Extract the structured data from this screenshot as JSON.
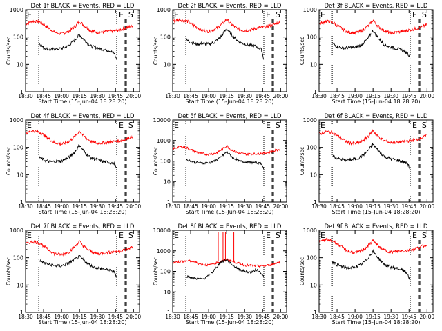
{
  "figure": {
    "y_label": "Counts/sec",
    "x_label": "Start Time (15-Jun-04 18:28:20)",
    "colors": {
      "events": "#000000",
      "lld": "#ff0000",
      "axes": "#000000"
    }
  },
  "chart_data": [
    {
      "type": "line",
      "title": "Det 1f BLACK = Events, RED = LLD",
      "x_ticks": [
        "18:30",
        "18:45",
        "19:00",
        "19:15",
        "19:30",
        "19:45",
        "20:00"
      ],
      "y_ticks": [
        "1",
        "10",
        "100",
        "1000"
      ],
      "y_scale": "log",
      "ylim": [
        1,
        1000
      ],
      "markers": [
        "E",
        "E",
        "S"
      ],
      "event_markers": {
        "dotted": [
          "18:41",
          "19:46"
        ],
        "dashed": [
          "19:53",
          "19:54"
        ]
      },
      "series": [
        {
          "color": "#ff0000",
          "x": [
            "18:30",
            "18:36",
            "18:42",
            "18:48",
            "18:54",
            "19:00",
            "19:06",
            "19:12",
            "19:15",
            "19:18",
            "19:24",
            "19:30",
            "19:36",
            "19:42",
            "19:48",
            "19:54",
            "20:00"
          ],
          "y": [
            300,
            380,
            350,
            230,
            150,
            130,
            160,
            260,
            380,
            280,
            170,
            150,
            155,
            165,
            180,
            220,
            270
          ]
        },
        {
          "color": "#000000",
          "x": [
            "18:41",
            "18:45",
            "18:50",
            "18:55",
            "19:00",
            "19:05",
            "19:10",
            "19:15",
            "19:20",
            "19:25",
            "19:30",
            "19:35",
            "19:40",
            "19:44",
            "19:46"
          ],
          "y": [
            60,
            40,
            35,
            37,
            38,
            45,
            70,
            120,
            70,
            45,
            40,
            35,
            32,
            25,
            15
          ]
        }
      ]
    },
    {
      "type": "line",
      "title": "Det 2f BLACK = Events, RED = LLD",
      "x_ticks": [
        "18:30",
        "18:45",
        "19:00",
        "19:15",
        "19:30",
        "19:45",
        "20:00"
      ],
      "y_ticks": [
        "1",
        "10",
        "100",
        "1000"
      ],
      "y_scale": "log",
      "ylim": [
        1,
        1000
      ],
      "markers": [
        "E",
        "E",
        "S"
      ],
      "event_markers": {
        "dotted": [
          "18:41",
          "19:46"
        ],
        "dashed": [
          "19:53",
          "19:54"
        ]
      },
      "series": [
        {
          "color": "#ff0000",
          "x": [
            "18:30",
            "18:36",
            "18:42",
            "18:48",
            "18:54",
            "19:00",
            "19:06",
            "19:12",
            "19:15",
            "19:18",
            "19:24",
            "19:30",
            "19:36",
            "19:42",
            "19:48",
            "19:54",
            "20:00"
          ],
          "y": [
            380,
            430,
            380,
            260,
            180,
            160,
            200,
            320,
            450,
            320,
            200,
            170,
            190,
            220,
            240,
            280,
            380
          ]
        },
        {
          "color": "#000000",
          "x": [
            "18:41",
            "18:45",
            "18:50",
            "18:55",
            "19:00",
            "19:05",
            "19:10",
            "19:15",
            "19:20",
            "19:25",
            "19:30",
            "19:35",
            "19:40",
            "19:44",
            "19:46"
          ],
          "y": [
            80,
            65,
            55,
            58,
            55,
            65,
            100,
            200,
            110,
            70,
            55,
            50,
            45,
            35,
            15
          ]
        }
      ]
    },
    {
      "type": "line",
      "title": "Det 3f BLACK = Events, RED = LLD",
      "x_ticks": [
        "18:30",
        "18:45",
        "19:00",
        "19:15",
        "19:30",
        "19:45",
        "20:00"
      ],
      "y_ticks": [
        "1",
        "10",
        "100",
        "1000"
      ],
      "y_scale": "log",
      "ylim": [
        1,
        1000
      ],
      "markers": [
        "E",
        "E",
        "S"
      ],
      "event_markers": {
        "dotted": [
          "18:41",
          "19:46"
        ],
        "dashed": [
          "19:53",
          "19:54"
        ]
      },
      "series": [
        {
          "color": "#ff0000",
          "x": [
            "18:30",
            "18:36",
            "18:42",
            "18:48",
            "18:54",
            "19:00",
            "19:06",
            "19:12",
            "19:15",
            "19:18",
            "19:24",
            "19:30",
            "19:36",
            "19:42",
            "19:48",
            "19:54",
            "20:00"
          ],
          "y": [
            300,
            380,
            330,
            220,
            150,
            140,
            170,
            280,
            420,
            280,
            170,
            140,
            150,
            170,
            190,
            220,
            280
          ]
        },
        {
          "color": "#000000",
          "x": [
            "18:41",
            "18:45",
            "18:50",
            "18:55",
            "19:00",
            "19:05",
            "19:10",
            "19:15",
            "19:20",
            "19:25",
            "19:30",
            "19:35",
            "19:40",
            "19:44",
            "19:46"
          ],
          "y": [
            60,
            45,
            40,
            42,
            42,
            50,
            80,
            170,
            85,
            50,
            42,
            38,
            32,
            25,
            18
          ]
        }
      ]
    },
    {
      "type": "line",
      "title": "Det 4f BLACK = Events, RED = LLD",
      "x_ticks": [
        "18:30",
        "18:45",
        "19:00",
        "19:15",
        "19:30",
        "19:45",
        "20:00"
      ],
      "y_ticks": [
        "1",
        "10",
        "100",
        "1000"
      ],
      "y_scale": "log",
      "ylim": [
        1,
        1000
      ],
      "markers": [
        "E",
        "E",
        "S"
      ],
      "event_markers": {
        "dotted": [
          "18:41",
          "19:46"
        ],
        "dashed": [
          "19:53",
          "19:54"
        ]
      },
      "series": [
        {
          "color": "#ff0000",
          "x": [
            "18:30",
            "18:36",
            "18:42",
            "18:48",
            "18:54",
            "19:00",
            "19:06",
            "19:12",
            "19:15",
            "19:18",
            "19:24",
            "19:30",
            "19:36",
            "19:42",
            "19:48",
            "19:54",
            "20:00"
          ],
          "y": [
            330,
            400,
            350,
            230,
            150,
            130,
            160,
            270,
            400,
            270,
            170,
            140,
            150,
            160,
            170,
            200,
            260
          ]
        },
        {
          "color": "#000000",
          "x": [
            "18:41",
            "18:45",
            "18:50",
            "18:55",
            "19:00",
            "19:05",
            "19:10",
            "19:15",
            "19:20",
            "19:25",
            "19:30",
            "19:35",
            "19:40",
            "19:44",
            "19:46"
          ],
          "y": [
            45,
            35,
            30,
            30,
            32,
            40,
            60,
            120,
            60,
            40,
            35,
            30,
            28,
            25,
            15
          ]
        }
      ]
    },
    {
      "type": "line",
      "title": "Det 5f BLACK = Events, RED = LLD",
      "x_ticks": [
        "18:30",
        "18:45",
        "19:00",
        "19:15",
        "19:30",
        "19:45",
        "20:00"
      ],
      "y_ticks": [
        "1",
        "10",
        "100",
        "1000",
        "10000"
      ],
      "y_scale": "log",
      "ylim": [
        1,
        10000
      ],
      "markers": [
        "E",
        "E",
        "S"
      ],
      "event_markers": {
        "dotted": [
          "18:41",
          "19:46"
        ],
        "dashed": [
          "19:53",
          "19:54"
        ]
      },
      "series": [
        {
          "color": "#ff0000",
          "x": [
            "18:30",
            "18:36",
            "18:42",
            "18:48",
            "18:54",
            "19:00",
            "19:06",
            "19:12",
            "19:15",
            "19:18",
            "19:24",
            "19:30",
            "19:36",
            "19:42",
            "19:48",
            "19:54",
            "20:00"
          ],
          "y": [
            400,
            500,
            440,
            300,
            230,
            210,
            240,
            400,
            560,
            380,
            250,
            220,
            220,
            230,
            250,
            300,
            380
          ]
        },
        {
          "color": "#000000",
          "x": [
            "18:41",
            "18:45",
            "18:50",
            "18:55",
            "19:00",
            "19:05",
            "19:10",
            "19:15",
            "19:20",
            "19:25",
            "19:30",
            "19:35",
            "19:40",
            "19:44",
            "19:46"
          ],
          "y": [
            120,
            100,
            85,
            80,
            80,
            100,
            150,
            280,
            150,
            100,
            90,
            85,
            80,
            75,
            40
          ]
        }
      ]
    },
    {
      "type": "line",
      "title": "Det 6f BLACK = Events, RED = LLD",
      "x_ticks": [
        "18:30",
        "18:45",
        "19:00",
        "19:15",
        "19:30",
        "19:45",
        "20:00"
      ],
      "y_ticks": [
        "1",
        "10",
        "100",
        "1000"
      ],
      "y_scale": "log",
      "ylim": [
        1,
        1000
      ],
      "markers": [
        "E",
        "E",
        "S"
      ],
      "event_markers": {
        "dotted": [
          "18:41",
          "19:46"
        ],
        "dashed": [
          "19:53",
          "19:54"
        ]
      },
      "series": [
        {
          "color": "#ff0000",
          "x": [
            "18:30",
            "18:36",
            "18:42",
            "18:48",
            "18:54",
            "19:00",
            "19:06",
            "19:12",
            "19:15",
            "19:18",
            "19:24",
            "19:30",
            "19:36",
            "19:42",
            "19:48",
            "19:54",
            "20:00"
          ],
          "y": [
            300,
            380,
            340,
            220,
            150,
            135,
            165,
            280,
            420,
            280,
            175,
            150,
            155,
            165,
            180,
            210,
            270
          ]
        },
        {
          "color": "#000000",
          "x": [
            "18:41",
            "18:45",
            "18:50",
            "18:55",
            "19:00",
            "19:05",
            "19:10",
            "19:15",
            "19:20",
            "19:25",
            "19:30",
            "19:35",
            "19:40",
            "19:44",
            "19:46"
          ],
          "y": [
            50,
            40,
            35,
            35,
            37,
            45,
            70,
            130,
            70,
            45,
            38,
            34,
            30,
            25,
            15
          ]
        }
      ]
    },
    {
      "type": "line",
      "title": "Det 7f BLACK = Events, RED = LLD",
      "x_ticks": [
        "18:30",
        "18:45",
        "19:00",
        "19:15",
        "19:30",
        "19:45",
        "20:00"
      ],
      "y_ticks": [
        "1",
        "10",
        "100",
        "1000"
      ],
      "y_scale": "log",
      "ylim": [
        1,
        1000
      ],
      "markers": [
        "E",
        "E",
        "S"
      ],
      "event_markers": {
        "dotted": [
          "18:41",
          "19:46"
        ],
        "dashed": [
          "19:53",
          "19:54"
        ]
      },
      "series": [
        {
          "color": "#ff0000",
          "x": [
            "18:30",
            "18:36",
            "18:42",
            "18:48",
            "18:54",
            "19:00",
            "19:06",
            "19:12",
            "19:15",
            "19:18",
            "19:24",
            "19:30",
            "19:36",
            "19:42",
            "19:48",
            "19:54",
            "20:00"
          ],
          "y": [
            320,
            390,
            340,
            210,
            140,
            130,
            160,
            280,
            390,
            270,
            170,
            140,
            150,
            160,
            170,
            200,
            260
          ]
        },
        {
          "color": "#000000",
          "x": [
            "18:41",
            "18:45",
            "18:50",
            "18:55",
            "19:00",
            "19:05",
            "19:10",
            "19:15",
            "19:20",
            "19:25",
            "19:30",
            "19:35",
            "19:40",
            "19:44",
            "19:46"
          ],
          "y": [
            85,
            65,
            55,
            50,
            50,
            60,
            80,
            110,
            70,
            50,
            42,
            38,
            35,
            30,
            20
          ]
        }
      ]
    },
    {
      "type": "line",
      "title": "Det 8f BLACK = Events, RED = LLD",
      "x_ticks": [
        "18:30",
        "18:45",
        "19:00",
        "19:15",
        "19:30",
        "19:45",
        "20:00"
      ],
      "y_ticks": [
        "1",
        "10",
        "100",
        "1000",
        "10000"
      ],
      "y_scale": "log",
      "ylim": [
        1,
        10000
      ],
      "markers": [
        "E",
        "E",
        "S"
      ],
      "event_markers": {
        "dotted": [
          "18:41",
          "19:46"
        ],
        "dashed": [
          "19:53",
          "19:54"
        ]
      },
      "series": [
        {
          "color": "#ff0000",
          "x": [
            "18:30",
            "18:36",
            "18:42",
            "18:48",
            "18:54",
            "19:00",
            "19:06",
            "19:12",
            "19:15",
            "19:18",
            "19:24",
            "19:30",
            "19:36",
            "19:42",
            "19:48",
            "19:54",
            "20:00"
          ],
          "y": [
            260,
            300,
            330,
            290,
            220,
            200,
            260,
            320,
            400,
            330,
            260,
            200,
            190,
            180,
            190,
            230,
            300
          ]
        },
        {
          "color": "#000000",
          "x": [
            "18:41",
            "18:45",
            "18:50",
            "18:55",
            "19:00",
            "19:05",
            "19:10",
            "19:15",
            "19:20",
            "19:25",
            "19:30",
            "19:35",
            "19:40",
            "19:44",
            "19:46"
          ],
          "y": [
            60,
            50,
            45,
            42,
            60,
            120,
            280,
            380,
            200,
            130,
            100,
            90,
            120,
            80,
            50
          ]
        }
      ],
      "spikes": [
        "19:08",
        "19:12",
        "19:14",
        "19:21"
      ]
    },
    {
      "type": "line",
      "title": "Det 9f BLACK = Events, RED = LLD",
      "x_ticks": [
        "18:30",
        "18:45",
        "19:00",
        "19:15",
        "19:30",
        "19:45",
        "20:00"
      ],
      "y_ticks": [
        "1",
        "10",
        "100",
        "1000"
      ],
      "y_scale": "log",
      "ylim": [
        1,
        1000
      ],
      "markers": [
        "E",
        "E",
        "S"
      ],
      "event_markers": {
        "dotted": [
          "18:41",
          "19:46"
        ],
        "dashed": [
          "19:53",
          "19:54"
        ]
      },
      "series": [
        {
          "color": "#ff0000",
          "x": [
            "18:30",
            "18:36",
            "18:42",
            "18:48",
            "18:54",
            "19:00",
            "19:06",
            "19:12",
            "19:15",
            "19:18",
            "19:24",
            "19:30",
            "19:36",
            "19:42",
            "19:48",
            "19:54",
            "20:00"
          ],
          "y": [
            380,
            460,
            400,
            260,
            170,
            150,
            180,
            300,
            440,
            300,
            190,
            160,
            170,
            180,
            200,
            240,
            300
          ]
        },
        {
          "color": "#000000",
          "x": [
            "18:41",
            "18:45",
            "18:50",
            "18:55",
            "19:00",
            "19:05",
            "19:10",
            "19:15",
            "19:20",
            "19:25",
            "19:30",
            "19:35",
            "19:40",
            "19:44",
            "19:46"
          ],
          "y": [
            70,
            55,
            45,
            42,
            45,
            55,
            90,
            170,
            90,
            55,
            45,
            40,
            35,
            25,
            14
          ]
        }
      ]
    }
  ]
}
